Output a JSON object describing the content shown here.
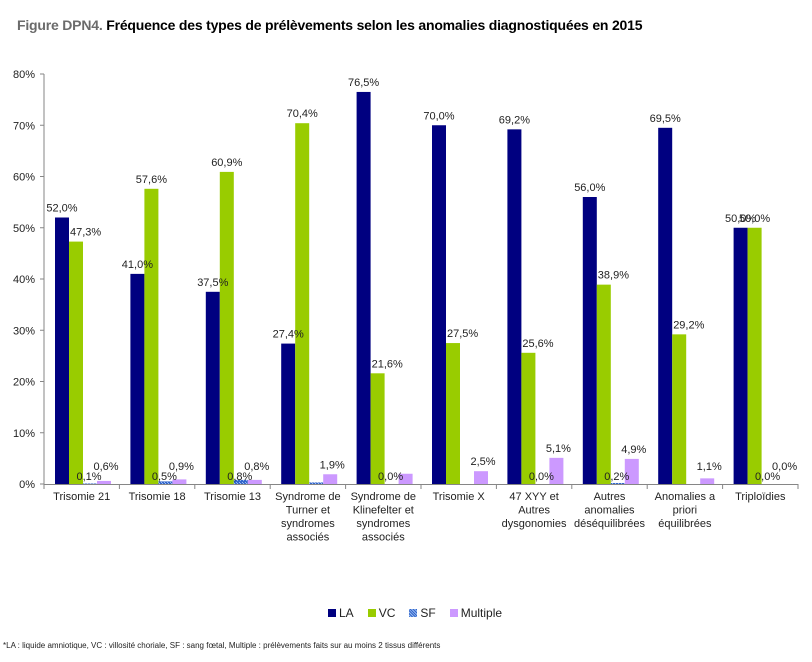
{
  "title": {
    "prefix": "Figure DPN4.",
    "text": "Fréquence des types de prélèvements selon les anomalies diagnostiquées en 2015"
  },
  "footnote": "*LA : liquide amniotique, VC : villosité choriale, SF : sang fœtal, Multiple : prélèvements faits sur au moins 2 tissus différents",
  "chart_data": {
    "type": "bar",
    "title": "Fréquence des types de prélèvements selon les anomalies diagnostiquées en 2015",
    "xlabel": "",
    "ylabel": "",
    "ylim": [
      0,
      80
    ],
    "yticks": [
      "0%",
      "10%",
      "20%",
      "30%",
      "40%",
      "50%",
      "60%",
      "70%",
      "80%"
    ],
    "grid": false,
    "legend_position": "bottom",
    "categories": [
      [
        "Trisomie 21"
      ],
      [
        "Trisomie 18"
      ],
      [
        "Trisomie 13"
      ],
      [
        "Syndrome de",
        "Turner et",
        "syndromes",
        "associés"
      ],
      [
        "Syndrome de",
        "Klinefelter et",
        "syndromes",
        "associés"
      ],
      [
        "Trisomie X"
      ],
      [
        "47 XYY et",
        "Autres",
        "dysgonomies"
      ],
      [
        "Autres",
        "anomalies",
        "déséquilibrées"
      ],
      [
        "Anomalies a",
        "priori",
        "équilibrées"
      ],
      [
        "Triploïdies"
      ]
    ],
    "series": [
      {
        "name": "LA",
        "color": "#000080",
        "values": [
          52.0,
          41.0,
          37.5,
          27.4,
          76.5,
          70.0,
          69.2,
          56.0,
          69.5,
          50.0
        ],
        "labels": [
          "52,0%",
          "41,0%",
          "37,5%",
          "27,4%",
          "76,5%",
          "70,0%",
          "69,2%",
          "56,0%",
          "69,5%",
          "50,0%"
        ]
      },
      {
        "name": "VC",
        "color": "#99cc00",
        "values": [
          47.3,
          57.6,
          60.9,
          70.4,
          21.6,
          27.5,
          25.6,
          38.9,
          29.2,
          50.0
        ],
        "labels": [
          "47,3%",
          "57,6%",
          "60,9%",
          "70,4%",
          "21,6%",
          "27,5%",
          "25,6%",
          "38,9%",
          "29,2%",
          "50,0%"
        ]
      },
      {
        "name": "SF",
        "color": "#3366cc",
        "values": [
          0.1,
          0.5,
          0.8,
          0.3,
          0.0,
          0.0,
          0.0,
          0.2,
          0.0,
          0.0
        ],
        "labels": [
          "0,1%",
          "0,5%",
          "0,8%",
          null,
          "0,0%",
          null,
          "0,0%",
          "0,2%",
          null,
          "0,0%"
        ]
      },
      {
        "name": "Multiple",
        "color": "#cc99ff",
        "values": [
          0.6,
          0.9,
          0.8,
          1.9,
          2.0,
          2.5,
          5.1,
          4.9,
          1.1,
          0.0
        ],
        "labels": [
          "0,6%",
          "0,9%",
          "0,8%",
          "1,9%",
          null,
          "2,5%",
          "5,1%",
          "4,9%",
          "1,1%",
          "0,0%"
        ]
      }
    ]
  }
}
